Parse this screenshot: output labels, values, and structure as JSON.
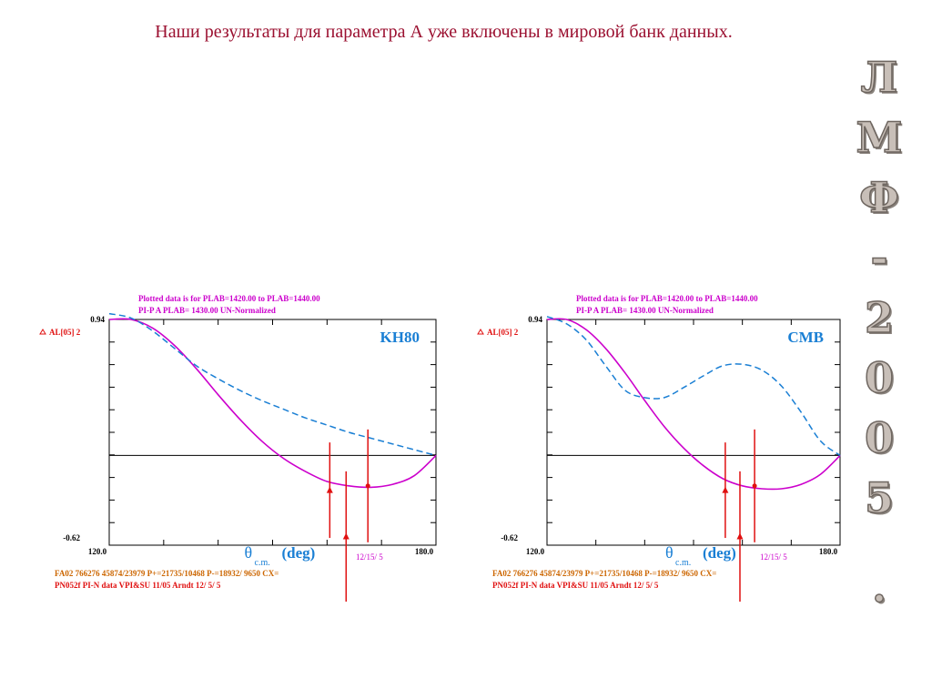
{
  "page": {
    "title": "Наши результаты для параметра А уже включены в мировой банк данных.",
    "side_letters": [
      "Л",
      "М",
      "Ф",
      "-",
      "2",
      "0",
      "0",
      "5",
      "."
    ]
  },
  "colors": {
    "title": "#9b1030",
    "header": "#cc00cc",
    "model_curve": "#cc00cc",
    "reference_curve": "#1a7fd4",
    "data": "#e01010",
    "footer1": "#cc6600",
    "footer2": "#e01010",
    "tag": "#1a7fd4"
  },
  "chart_data": [
    {
      "type": "line",
      "tag": "KH80",
      "header_line1": "Plotted data is for PLAB=1420.00 to PLAB=1440.00",
      "header_line2": "PI-P  A     PLAB= 1430.00 UN-Normalized",
      "legend_label": "AL[05] 2",
      "ytop_label": "0.94",
      "ybot_label": "-0.62",
      "xleft_label": "120.0",
      "xright_label": "180.0",
      "xlabel_main": "θ",
      "xlabel_sub": "c.m.",
      "xlabel_unit": "(deg)",
      "date_label": "12/15/ 5",
      "footer_line1": "FA02 766276 45874/23979 P+=21735/10468 P-=18932/ 9650 CX=",
      "footer_line2": "PN052f  PI-N data VPI&SU  11/05   Arndt 12/ 5/ 5",
      "xlim": [
        120,
        180
      ],
      "ylim": [
        -0.62,
        0.94
      ],
      "series": [
        {
          "style": "solid",
          "x": [
            120,
            124,
            128,
            132,
            136,
            140,
            144,
            148,
            152,
            156,
            160,
            164,
            168,
            172,
            176,
            180
          ],
          "y": [
            0.94,
            0.94,
            0.88,
            0.76,
            0.6,
            0.42,
            0.25,
            0.1,
            -0.02,
            -0.11,
            -0.18,
            -0.21,
            -0.22,
            -0.2,
            -0.14,
            0.0
          ]
        },
        {
          "style": "dashed",
          "x": [
            120,
            124,
            128,
            132,
            136,
            140,
            144,
            148,
            152,
            156,
            160,
            164,
            168,
            172,
            176,
            180
          ],
          "y": [
            0.98,
            0.95,
            0.86,
            0.74,
            0.62,
            0.53,
            0.45,
            0.38,
            0.32,
            0.26,
            0.21,
            0.16,
            0.12,
            0.08,
            0.04,
            0.0
          ]
        }
      ],
      "points": [
        {
          "x": 160.5,
          "y": -0.24,
          "err": 0.33,
          "marker": "triangle"
        },
        {
          "x": 163.5,
          "y": -0.56,
          "err": 0.45,
          "marker": "triangle"
        },
        {
          "x": 167.5,
          "y": -0.21,
          "err": 0.39,
          "marker": "dot"
        }
      ]
    },
    {
      "type": "line",
      "tag": "CMB",
      "header_line1": "Plotted data is for PLAB=1420.00 to PLAB=1440.00",
      "header_line2": "PI-P  A     PLAB= 1430.00 UN-Normalized",
      "legend_label": "AL[05] 2",
      "ytop_label": "0.94",
      "ybot_label": "-0.62",
      "xleft_label": "120.0",
      "xright_label": "180.0",
      "xlabel_main": "θ",
      "xlabel_sub": "c.m.",
      "xlabel_unit": "(deg)",
      "date_label": "12/15/ 5",
      "footer_line1": "FA02 766276 45874/23979 P+=21735/10468 P-=18932/ 9650 CX=",
      "footer_line2": "PN052f  PI-N data VPI&SU  11/05   Arndt 12/ 5/ 5",
      "xlim": [
        120,
        180
      ],
      "ylim": [
        -0.62,
        0.94
      ],
      "series": [
        {
          "style": "solid",
          "x": [
            120,
            124,
            128,
            132,
            136,
            140,
            144,
            148,
            152,
            156,
            160,
            164,
            168,
            172,
            176,
            180
          ],
          "y": [
            0.94,
            0.94,
            0.87,
            0.74,
            0.57,
            0.38,
            0.2,
            0.05,
            -0.07,
            -0.16,
            -0.21,
            -0.23,
            -0.23,
            -0.2,
            -0.13,
            0.0
          ]
        },
        {
          "style": "dashed",
          "x": [
            120,
            124,
            128,
            132,
            136,
            140,
            144,
            148,
            152,
            156,
            160,
            164,
            168,
            172,
            176,
            180
          ],
          "y": [
            0.96,
            0.91,
            0.8,
            0.62,
            0.45,
            0.4,
            0.4,
            0.47,
            0.55,
            0.62,
            0.63,
            0.59,
            0.48,
            0.3,
            0.1,
            0.0
          ]
        }
      ],
      "points": [
        {
          "x": 156.5,
          "y": -0.24,
          "err": 0.33,
          "marker": "triangle"
        },
        {
          "x": 159.5,
          "y": -0.56,
          "err": 0.45,
          "marker": "triangle"
        },
        {
          "x": 162.5,
          "y": -0.21,
          "err": 0.39,
          "marker": "dot"
        }
      ]
    }
  ]
}
